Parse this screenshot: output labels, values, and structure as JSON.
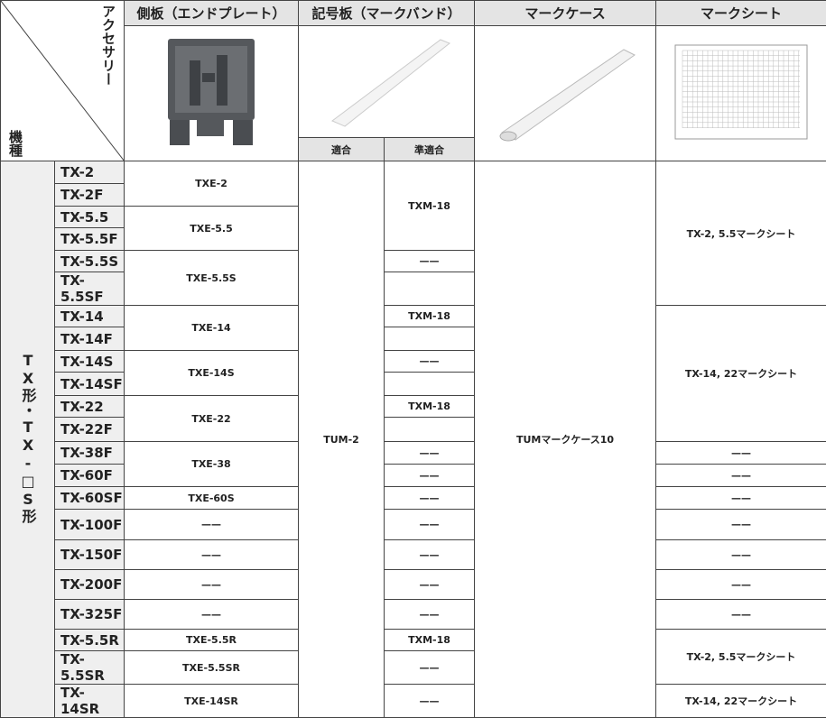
{
  "header": {
    "corner_top": "アクセサリー",
    "corner_bottom": "機種",
    "side_plate": "側板（エンドプレート）",
    "marker_band": "記号板（マークバンド）",
    "fit": "適合",
    "semi_fit": "準適合",
    "mark_case": "マークケース",
    "mark_sheet": "マークシート"
  },
  "group": "TX形・TX-□S形",
  "models": [
    "TX-2",
    "TX-2F",
    "TX-5.5",
    "TX-5.5F",
    "TX-5.5S",
    "TX-5.5SF",
    "TX-14",
    "TX-14F",
    "TX-14S",
    "TX-14SF",
    "TX-22",
    "TX-22F",
    "TX-38F",
    "TX-60F",
    "TX-60SF",
    "TX-100F",
    "TX-150F",
    "TX-200F",
    "TX-325F",
    "TX-5.5R",
    "TX-5.5SR",
    "TX-14SR"
  ],
  "side_plate": [
    "TXE-2",
    "TXE-5.5",
    "TXE-5.5S",
    "TXE-14",
    "TXE-14S",
    "TXE-22",
    "TXE-38",
    "TXE-60S",
    "——",
    "——",
    "——",
    "——",
    "TXE-5.5R",
    "TXE-5.5SR",
    "TXE-14SR"
  ],
  "fit": "TUM-2",
  "semi_fit": [
    "TXM-18",
    "——",
    "TXM-18",
    "——",
    "TXM-18",
    "——",
    "——",
    "——",
    "——",
    "——",
    "——",
    "——",
    "TXM-18",
    "——",
    "——"
  ],
  "mark_case": "TUMマークケース10",
  "mark_sheet": [
    "TX-2, 5.5マークシート",
    "TX-14, 22マークシート",
    "——",
    "——",
    "——",
    "——",
    "——",
    "——",
    "——",
    "TX-2, 5.5マークシート",
    "TX-14, 22マークシート"
  ]
}
